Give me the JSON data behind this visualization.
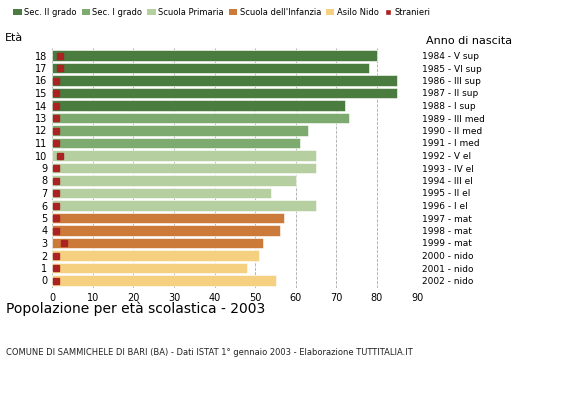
{
  "ages": [
    18,
    17,
    16,
    15,
    14,
    13,
    12,
    11,
    10,
    9,
    8,
    7,
    6,
    5,
    4,
    3,
    2,
    1,
    0
  ],
  "bar_values": [
    80,
    78,
    85,
    85,
    72,
    73,
    63,
    61,
    65,
    65,
    60,
    54,
    65,
    57,
    56,
    52,
    51,
    48,
    55
  ],
  "bar_colors": [
    "#4a7c3f",
    "#4a7c3f",
    "#4a7c3f",
    "#4a7c3f",
    "#4a7c3f",
    "#7daa6e",
    "#7daa6e",
    "#7daa6e",
    "#b5cfa0",
    "#b5cfa0",
    "#b5cfa0",
    "#b5cfa0",
    "#b5cfa0",
    "#cc7a3a",
    "#cc7a3a",
    "#cc7a3a",
    "#f5d080",
    "#f5d080",
    "#f5d080"
  ],
  "stranieri_values": [
    2,
    2,
    1,
    1,
    1,
    1,
    1,
    1,
    2,
    1,
    1,
    1,
    1,
    1,
    1,
    3,
    1,
    1,
    1
  ],
  "right_labels": [
    "1984 - V sup",
    "1985 - VI sup",
    "1986 - III sup",
    "1987 - II sup",
    "1988 - I sup",
    "1989 - III med",
    "1990 - II med",
    "1991 - I med",
    "1992 - V el",
    "1993 - IV el",
    "1994 - III el",
    "1995 - II el",
    "1996 - I el",
    "1997 - mat",
    "1998 - mat",
    "1999 - mat",
    "2000 - nido",
    "2001 - nido",
    "2002 - nido"
  ],
  "legend_labels": [
    "Sec. II grado",
    "Sec. I grado",
    "Scuola Primaria",
    "Scuola dell'Infanzia",
    "Asilo Nido",
    "Stranieri"
  ],
  "legend_colors": [
    "#4a7c3f",
    "#7daa6e",
    "#b5cfa0",
    "#cc7a3a",
    "#f5d080",
    "#aa2222"
  ],
  "title": "Popolazione per età scolastica - 2003",
  "subtitle": "COMUNE DI SAMMICHELE DI BARI (BA) - Dati ISTAT 1° gennaio 2003 - Elaborazione TUTTITALIA.IT",
  "ylabel_left": "Età",
  "ylabel_right": "Anno di nascita",
  "xlim": [
    0,
    90
  ],
  "xticks": [
    0,
    10,
    20,
    30,
    40,
    50,
    60,
    70,
    80,
    90
  ],
  "background_color": "#ffffff",
  "bar_height": 0.82,
  "stranieri_color": "#aa2222",
  "stranieri_size": 5
}
